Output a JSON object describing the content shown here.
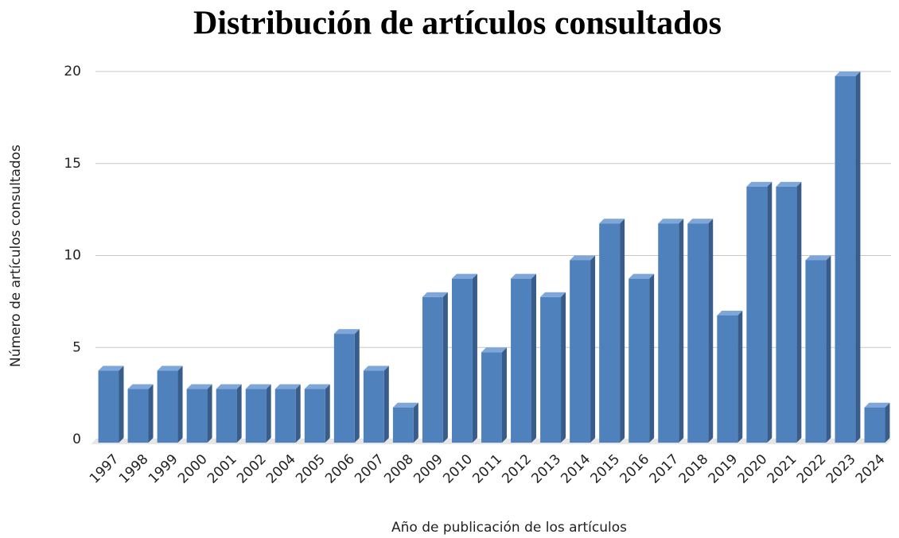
{
  "chart_data": {
    "type": "bar",
    "title": "Distribución de artículos consultados",
    "x_label": "Año de publicación de los artículos",
    "y_label": "Número de artículos consultados",
    "categories": [
      "1997",
      "1998",
      "1999",
      "2000",
      "2001",
      "2002",
      "2004",
      "2005",
      "2006",
      "2007",
      "2008",
      "2009",
      "2010",
      "2011",
      "2012",
      "2013",
      "2014",
      "2015",
      "2016",
      "2017",
      "2018",
      "2019",
      "2020",
      "2021",
      "2022",
      "2023",
      "2024"
    ],
    "values": [
      4,
      3,
      4,
      3,
      3,
      3,
      3,
      3,
      6,
      4,
      2,
      8,
      9,
      5,
      9,
      8,
      10,
      12,
      9,
      12,
      12,
      7,
      14,
      14,
      10,
      20,
      2
    ],
    "color": "#4f81bd",
    "ylim": [
      0,
      20
    ],
    "yticks": [
      0,
      5,
      10,
      15,
      20
    ],
    "grid": true
  }
}
